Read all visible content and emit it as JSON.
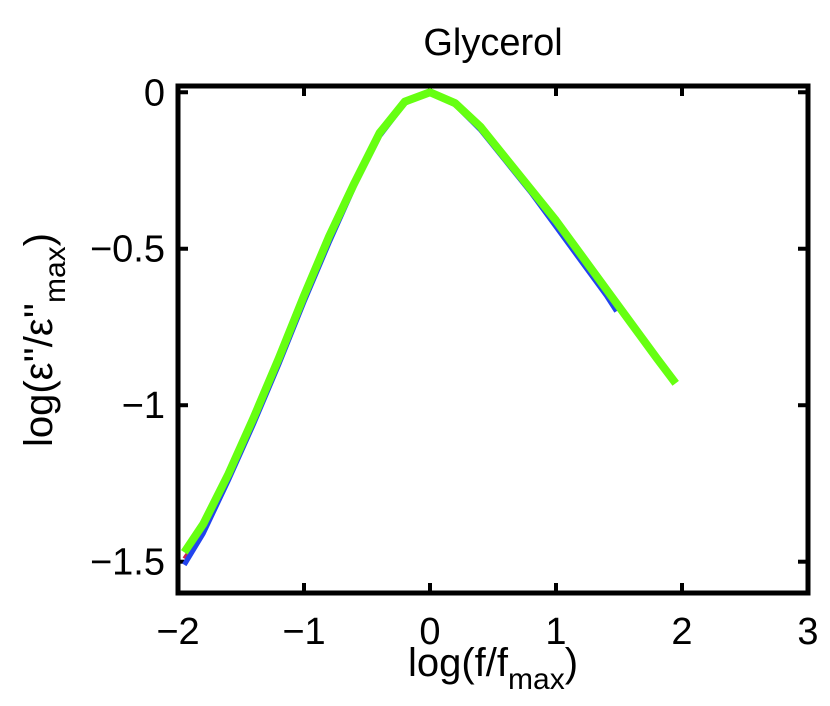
{
  "chart_data": {
    "type": "line",
    "title": "Glycerol",
    "xlabel": {
      "base": "log(f/f",
      "sub": "max",
      "tail": ")"
    },
    "ylabel": {
      "base": "log(ε''/ε''",
      "sub": "max",
      "tail": ")"
    },
    "xlim": [
      -2,
      3
    ],
    "ylim": [
      -1.6,
      0.02
    ],
    "x_ticks": [
      -2,
      -1,
      0,
      1,
      2,
      3
    ],
    "x_tick_labels": [
      "−2",
      "−1",
      "0",
      "1",
      "2",
      "3"
    ],
    "y_ticks": [
      0,
      -0.5,
      -1,
      -1.5
    ],
    "y_tick_labels": [
      "0",
      "−0.5",
      "−1",
      "−1.5"
    ],
    "grid": false,
    "series": [
      {
        "color": "#cc2255",
        "x": [
          -1.95,
          -1.8,
          -1.6,
          -1.4,
          -1.2,
          -1.0,
          -0.8,
          -0.6,
          -0.4,
          -0.2,
          0.0,
          0.2,
          0.4,
          0.6,
          0.8,
          1.0,
          1.05
        ],
        "y": [
          -1.49,
          -1.4,
          -1.24,
          -1.06,
          -0.87,
          -0.67,
          -0.48,
          -0.3,
          -0.14,
          -0.035,
          0.0,
          -0.04,
          -0.12,
          -0.22,
          -0.32,
          -0.43,
          -0.45
        ]
      },
      {
        "color": "#2244ee",
        "x": [
          -1.95,
          -1.8,
          -1.6,
          -1.4,
          -1.2,
          -1.0,
          -0.8,
          -0.6,
          -0.4,
          -0.2,
          0.0,
          0.2,
          0.4,
          0.6,
          0.8,
          1.0,
          1.2,
          1.4,
          1.48
        ],
        "y": [
          -1.51,
          -1.41,
          -1.24,
          -1.06,
          -0.87,
          -0.67,
          -0.48,
          -0.3,
          -0.14,
          -0.035,
          0.0,
          -0.04,
          -0.12,
          -0.22,
          -0.32,
          -0.43,
          -0.54,
          -0.65,
          -0.7
        ]
      },
      {
        "color": "#66ff11",
        "x": [
          -1.95,
          -1.8,
          -1.6,
          -1.4,
          -1.2,
          -1.0,
          -0.8,
          -0.6,
          -0.4,
          -0.2,
          0.0,
          0.2,
          0.4,
          0.6,
          0.8,
          1.0,
          1.2,
          1.4,
          1.6,
          1.8,
          1.95
        ],
        "y": [
          -1.47,
          -1.38,
          -1.22,
          -1.04,
          -0.85,
          -0.65,
          -0.46,
          -0.29,
          -0.13,
          -0.03,
          0.0,
          -0.035,
          -0.11,
          -0.21,
          -0.31,
          -0.41,
          -0.52,
          -0.63,
          -0.74,
          -0.85,
          -0.93
        ]
      }
    ]
  }
}
